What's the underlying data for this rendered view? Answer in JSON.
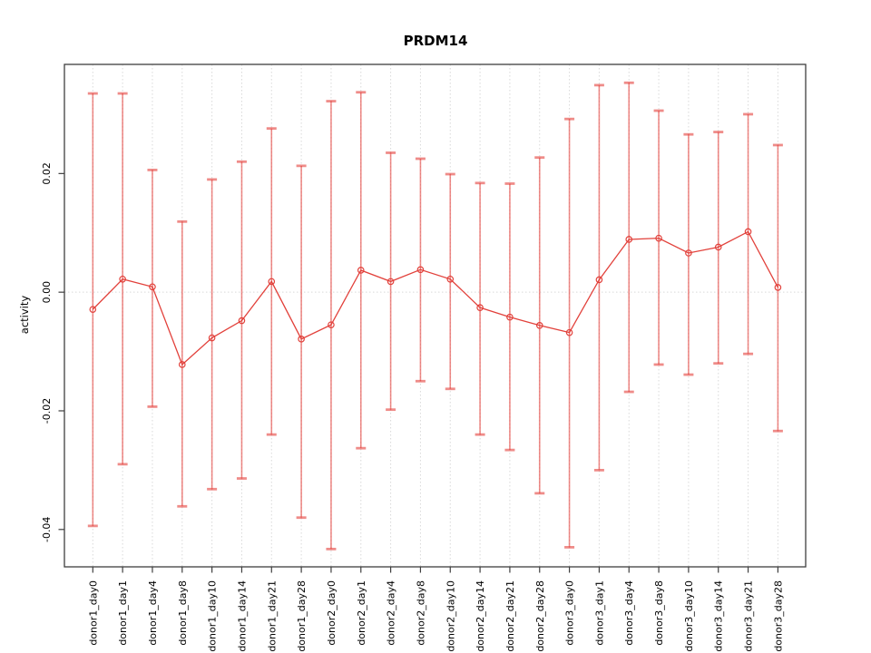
{
  "window": {
    "background": "#ffffff"
  },
  "chart_data": {
    "type": "line",
    "title": "PRDM14",
    "ylabel": "activity",
    "xlabel": "",
    "categories": [
      "donor1_day0",
      "donor1_day1",
      "donor1_day4",
      "donor1_day8",
      "donor1_day10",
      "donor1_day14",
      "donor1_day21",
      "donor1_day28",
      "donor2_day0",
      "donor2_day1",
      "donor2_day4",
      "donor2_day8",
      "donor2_day10",
      "donor2_day14",
      "donor2_day21",
      "donor2_day28",
      "donor3_day0",
      "donor3_day1",
      "donor3_day4",
      "donor3_day8",
      "donor3_day10",
      "donor3_day14",
      "donor3_day21",
      "donor3_day28"
    ],
    "series": [
      {
        "name": "activity",
        "values": [
          -0.0029,
          0.0022,
          0.0009,
          -0.0122,
          -0.0077,
          -0.0048,
          0.0018,
          -0.0079,
          -0.0055,
          0.0037,
          0.0018,
          0.0038,
          0.0022,
          -0.0026,
          -0.0042,
          -0.0056,
          -0.0068,
          0.0021,
          0.0089,
          0.0091,
          0.0066,
          0.0076,
          0.0102,
          0.0008
        ],
        "error_low": [
          -0.0394,
          -0.029,
          -0.0193,
          -0.0361,
          -0.0332,
          -0.0314,
          -0.024,
          -0.038,
          -0.0433,
          -0.0263,
          -0.0198,
          -0.015,
          -0.0163,
          -0.024,
          -0.0266,
          -0.0339,
          -0.043,
          -0.03,
          -0.0168,
          -0.0122,
          -0.0139,
          -0.012,
          -0.0104,
          -0.0234
        ],
        "error_high": [
          0.0335,
          0.0335,
          0.0206,
          0.0119,
          0.019,
          0.022,
          0.0276,
          0.0213,
          0.0322,
          0.0337,
          0.0235,
          0.0225,
          0.0199,
          0.0184,
          0.0183,
          0.0227,
          0.0292,
          0.0349,
          0.0353,
          0.0306,
          0.0266,
          0.027,
          0.03,
          0.0248
        ]
      }
    ],
    "yticks": [
      0.02,
      0.0,
      -0.02,
      -0.04
    ],
    "ytick_labels": [
      "0.02",
      "0.00",
      "-0.02",
      "-0.04"
    ],
    "ylim": [
      -0.0463,
      0.0384
    ],
    "legend": null,
    "grid": {
      "vertical_dotted_per_category": true,
      "dotted_zero_line": true
    },
    "marker": "open-circle",
    "colors": {
      "errorbar": "rgba(228,64,58,0.60)",
      "line": "#e2413b",
      "marker": "#e2413b",
      "grid": "#d9d9d9",
      "axis": "#3f3f3f",
      "text": "#000000"
    }
  }
}
